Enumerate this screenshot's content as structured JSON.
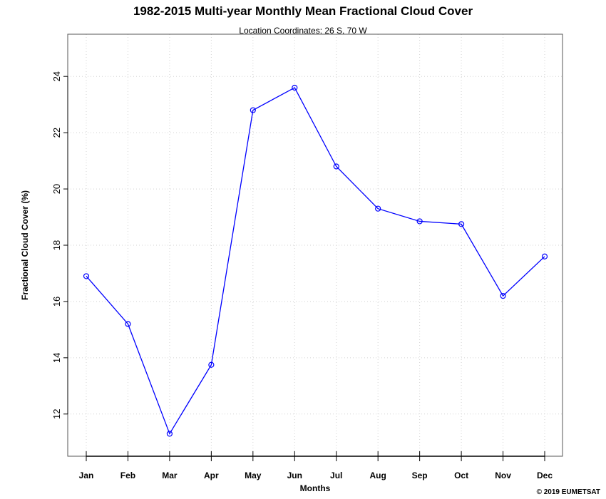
{
  "chart_data": {
    "type": "line",
    "title": "1982-2015 Multi-year Monthly Mean Fractional Cloud Cover",
    "subtitle": "Location Coordinates: 26 S, 70 W",
    "xlabel": "Months",
    "ylabel": "Fractional Cloud Cover (%)",
    "categories": [
      "Jan",
      "Feb",
      "Mar",
      "Apr",
      "May",
      "Jun",
      "Jul",
      "Aug",
      "Sep",
      "Oct",
      "Nov",
      "Dec"
    ],
    "values": [
      16.9,
      15.2,
      11.3,
      13.75,
      22.8,
      23.6,
      20.8,
      19.3,
      18.85,
      18.75,
      16.2,
      17.6
    ],
    "yticks": [
      12,
      14,
      16,
      18,
      20,
      22,
      24
    ],
    "ylim": [
      10.5,
      25.5
    ],
    "grid": true,
    "line_color": "#0000ff",
    "marker": "open-circle"
  },
  "footer": {
    "copyright": "© 2019 EUMETSAT"
  }
}
